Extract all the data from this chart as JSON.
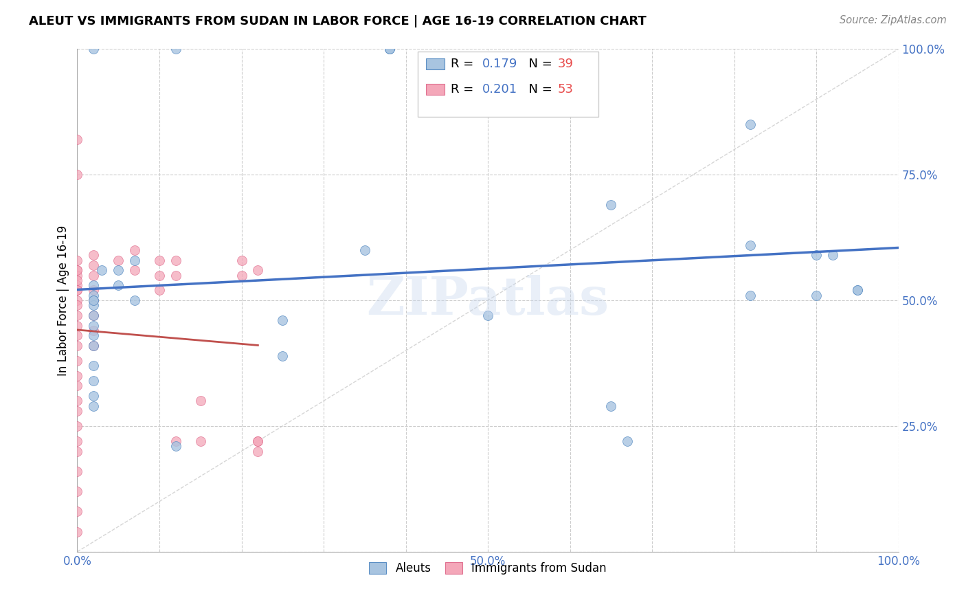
{
  "title": "ALEUT VS IMMIGRANTS FROM SUDAN IN LABOR FORCE | AGE 16-19 CORRELATION CHART",
  "source": "Source: ZipAtlas.com",
  "ylabel": "In Labor Force | Age 16-19",
  "xlim": [
    0,
    1.0
  ],
  "ylim": [
    0,
    1.0
  ],
  "watermark": "ZIPatlas",
  "aleuts_color": "#a8c4e0",
  "sudan_color": "#f4a7b9",
  "aleuts_edge_color": "#5b8ec4",
  "sudan_edge_color": "#e07090",
  "aleuts_line_color": "#4472c4",
  "sudan_line_color": "#c0504d",
  "aleuts_R": "0.179",
  "aleuts_N": "39",
  "sudan_R": "0.201",
  "sudan_N": "53",
  "legend_val_color": "#4472c4",
  "legend_n_color": "#e84c4c",
  "aleuts_x": [
    0.02,
    0.12,
    0.05,
    0.05,
    0.03,
    0.02,
    0.02,
    0.02,
    0.02,
    0.02,
    0.02,
    0.02,
    0.02,
    0.02,
    0.02,
    0.02,
    0.02,
    0.07,
    0.07,
    0.12,
    0.25,
    0.25,
    0.35,
    0.38,
    0.38,
    0.38,
    0.5,
    0.65,
    0.65,
    0.67,
    0.82,
    0.82,
    0.82,
    0.9,
    0.9,
    0.92,
    0.95,
    0.95,
    0.02
  ],
  "aleuts_y": [
    1.0,
    1.0,
    0.56,
    0.53,
    0.56,
    0.53,
    0.51,
    0.5,
    0.49,
    0.47,
    0.45,
    0.43,
    0.41,
    0.37,
    0.34,
    0.31,
    0.29,
    0.58,
    0.5,
    0.21,
    0.46,
    0.39,
    0.6,
    1.0,
    1.0,
    1.0,
    0.47,
    0.69,
    0.29,
    0.22,
    0.85,
    0.61,
    0.51,
    0.59,
    0.51,
    0.59,
    0.52,
    0.52,
    0.5
  ],
  "sudan_x": [
    0.0,
    0.0,
    0.0,
    0.0,
    0.0,
    0.0,
    0.0,
    0.0,
    0.0,
    0.0,
    0.0,
    0.0,
    0.0,
    0.0,
    0.0,
    0.0,
    0.0,
    0.0,
    0.0,
    0.0,
    0.0,
    0.0,
    0.0,
    0.0,
    0.0,
    0.0,
    0.0,
    0.0,
    0.02,
    0.02,
    0.02,
    0.02,
    0.02,
    0.02,
    0.02,
    0.02,
    0.05,
    0.07,
    0.07,
    0.1,
    0.1,
    0.1,
    0.12,
    0.12,
    0.12,
    0.15,
    0.15,
    0.2,
    0.2,
    0.22,
    0.22,
    0.22,
    0.22
  ],
  "sudan_y": [
    0.82,
    0.75,
    0.58,
    0.56,
    0.55,
    0.53,
    0.52,
    0.5,
    0.49,
    0.47,
    0.45,
    0.43,
    0.41,
    0.38,
    0.35,
    0.33,
    0.3,
    0.28,
    0.25,
    0.22,
    0.2,
    0.16,
    0.12,
    0.08,
    0.04,
    0.56,
    0.54,
    0.52,
    0.59,
    0.57,
    0.55,
    0.52,
    0.5,
    0.47,
    0.44,
    0.41,
    0.58,
    0.6,
    0.56,
    0.58,
    0.55,
    0.52,
    0.58,
    0.55,
    0.22,
    0.3,
    0.22,
    0.58,
    0.55,
    0.56,
    0.22,
    0.2,
    0.22
  ]
}
